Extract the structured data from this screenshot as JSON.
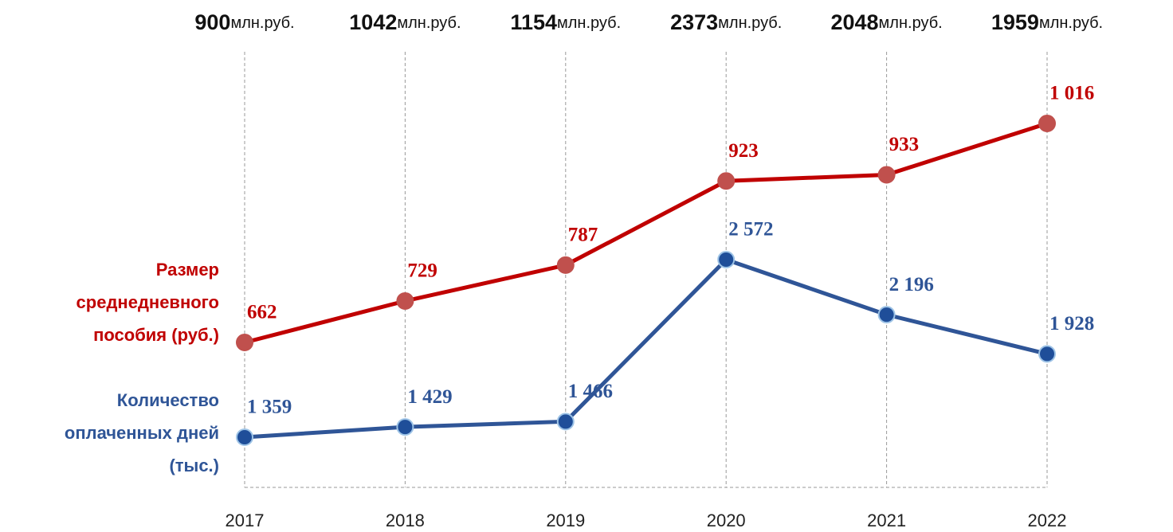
{
  "chart_data": {
    "type": "line",
    "categories": [
      "2017",
      "2018",
      "2019",
      "2020",
      "2021",
      "2022"
    ],
    "series": [
      {
        "name": "Размер среднедневного пособия (руб.)",
        "color": "#c00000",
        "marker_color": "#c0504d",
        "values": [
          662,
          729,
          787,
          923,
          933,
          1016
        ],
        "value_labels": [
          "662",
          "729",
          "787",
          "923",
          "933",
          "1 016"
        ]
      },
      {
        "name": "Количество оплаченных дней (тыс.)",
        "color": "#2f5597",
        "marker_color": "#1f4e99",
        "values": [
          1359,
          1429,
          1466,
          2572,
          2196,
          1928
        ],
        "value_labels": [
          "1 359",
          "1 429",
          "1 466",
          "2 572",
          "2 196",
          "1 928"
        ]
      }
    ],
    "totals": [
      900,
      1042,
      1154,
      2373,
      2048,
      1959
    ],
    "totals_unit": "млн.руб.",
    "grid": true
  }
}
